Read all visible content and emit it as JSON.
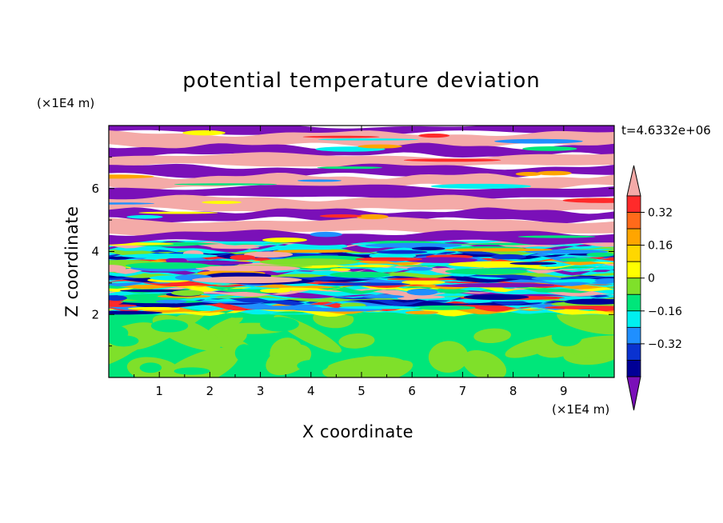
{
  "chart_data": {
    "type": "heatmap",
    "title": "potential temperature deviation",
    "xlabel": "X coordinate",
    "ylabel": "Z coordinate",
    "x_unit": "(×1E4 m)",
    "y_unit": "(×1E4 m)",
    "time_label": "t=4.6332e+06",
    "xlim": [
      0,
      10
    ],
    "ylim": [
      0,
      8
    ],
    "x_ticks": [
      "1",
      "2",
      "3",
      "4",
      "5",
      "6",
      "7",
      "8",
      "9"
    ],
    "y_ticks": [
      "2",
      "4",
      "6"
    ],
    "colorbar": {
      "levels": [
        -0.48,
        -0.4,
        -0.32,
        -0.24,
        -0.16,
        -0.08,
        0,
        0.08,
        0.16,
        0.24,
        0.32,
        0.4,
        0.48
      ],
      "labels": [
        "0.32",
        "0.16",
        "0",
        "−0.16",
        "−0.32"
      ],
      "colors_top_to_bottom": [
        "#f4aaa8",
        "#ff2a2a",
        "#ff6a1a",
        "#ffa500",
        "#ffd700",
        "#ffff00",
        "#7fe02a",
        "#00e67a",
        "#00f0f0",
        "#1f8fff",
        "#0a32d0",
        "#000096",
        "#7a10b8"
      ]
    },
    "layers": [
      {
        "zmin": 7.75,
        "zmax": 8.0,
        "level": "under"
      },
      {
        "zmin": 7.35,
        "zmax": 7.75,
        "level": "over"
      },
      {
        "zmin": 7.05,
        "zmax": 7.35,
        "level": "under"
      },
      {
        "zmin": 6.7,
        "zmax": 7.05,
        "level": "over"
      },
      {
        "zmin": 6.4,
        "zmax": 6.7,
        "level": "under"
      },
      {
        "zmin": 6.05,
        "zmax": 6.4,
        "level": "over"
      },
      {
        "zmin": 5.7,
        "zmax": 6.05,
        "level": "under"
      },
      {
        "zmin": 5.3,
        "zmax": 5.7,
        "level": "over"
      },
      {
        "zmin": 5.0,
        "zmax": 5.3,
        "level": "under"
      },
      {
        "zmin": 4.6,
        "zmax": 5.0,
        "level": "over"
      },
      {
        "zmin": 4.3,
        "zmax": 4.6,
        "level": "under"
      },
      {
        "zmin": 4.0,
        "zmax": 4.3,
        "level": "mixed"
      },
      {
        "zmin": 2.0,
        "zmax": 4.0,
        "level": "mixed"
      },
      {
        "zmin": 0.0,
        "zmax": 2.0,
        "level": "near-zero"
      }
    ]
  }
}
